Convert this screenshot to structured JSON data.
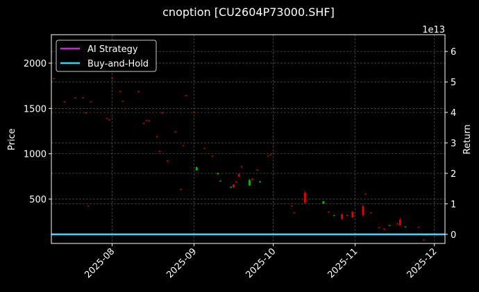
{
  "chart_data": {
    "type": "candlestick",
    "title": "cnoption [CU2604P73000.SHF]",
    "y_label": "Price",
    "y2_label": "Return",
    "y2_offset": "1e13",
    "x": [
      "2025-07-10",
      "2025-07-14",
      "2025-07-18",
      "2025-07-21",
      "2025-07-22",
      "2025-07-23",
      "2025-07-24",
      "2025-07-30",
      "2025-07-31",
      "2025-08-01",
      "2025-08-04",
      "2025-08-05",
      "2025-08-11",
      "2025-08-13",
      "2025-08-14",
      "2025-08-15",
      "2025-08-18",
      "2025-08-19",
      "2025-08-20",
      "2025-08-22",
      "2025-08-25",
      "2025-08-27",
      "2025-08-28",
      "2025-08-29",
      "2025-09-01",
      "2025-09-02",
      "2025-09-05",
      "2025-09-08",
      "2025-09-10",
      "2025-09-11",
      "2025-09-15",
      "2025-09-16",
      "2025-09-17",
      "2025-09-18",
      "2025-09-19",
      "2025-09-22",
      "2025-09-23",
      "2025-09-25",
      "2025-09-26",
      "2025-09-29",
      "2025-09-30",
      "2025-10-08",
      "2025-10-09",
      "2025-10-13",
      "2025-10-20",
      "2025-10-22",
      "2025-10-24",
      "2025-10-27",
      "2025-10-29",
      "2025-10-31",
      "2025-11-04",
      "2025-11-05",
      "2025-11-07",
      "2025-11-10",
      "2025-11-12",
      "2025-11-14",
      "2025-11-17",
      "2025-11-18",
      "2025-11-20",
      "2025-11-25",
      "2025-11-27"
    ],
    "open": [
      1832,
      1575,
      1620,
      1620,
      1452,
      425,
      1575,
      1392,
      1375,
      1835,
      1690,
      1582,
      1690,
      1338,
      1368,
      1368,
      1192,
      1030,
      1452,
      924,
      1245,
      610,
      1092,
      1644,
      1460,
      820,
      1062,
      978,
      775,
      695,
      625,
      660,
      695,
      775,
      862,
      650,
      722,
      822,
      685,
      978,
      992,
      425,
      350,
      570,
      450,
      358,
      315,
      330,
      322,
      360,
      420,
      558,
      350,
      189,
      173,
      205,
      228,
      270,
      190,
      189,
      51
    ],
    "high": [
      1840,
      1580,
      1625,
      1625,
      1458,
      430,
      1580,
      1398,
      1380,
      1840,
      1695,
      1588,
      1695,
      1344,
      1374,
      1373,
      1198,
      1036,
      1458,
      930,
      1250,
      616,
      1098,
      1650,
      1466,
      860,
      1068,
      984,
      790,
      705,
      640,
      665,
      700,
      780,
      868,
      720,
      728,
      828,
      700,
      984,
      998,
      432,
      356,
      590,
      480,
      364,
      325,
      340,
      328,
      368,
      440,
      564,
      356,
      195,
      179,
      215,
      234,
      290,
      200,
      195,
      57
    ],
    "low": [
      1825,
      1565,
      1612,
      1612,
      1445,
      418,
      1566,
      1385,
      1368,
      1826,
      1682,
      1575,
      1682,
      1330,
      1360,
      1361,
      1185,
      1022,
      1444,
      916,
      1238,
      602,
      1085,
      1636,
      1452,
      815,
      1055,
      970,
      770,
      690,
      620,
      625,
      685,
      745,
      855,
      645,
      715,
      815,
      680,
      970,
      985,
      418,
      343,
      440,
      445,
      351,
      312,
      275,
      315,
      295,
      305,
      551,
      343,
      182,
      166,
      202,
      221,
      205,
      187,
      182,
      44
    ],
    "close": [
      1830,
      1570,
      1616,
      1615,
      1448,
      422,
      1570,
      1388,
      1372,
      1830,
      1686,
      1578,
      1686,
      1334,
      1365,
      1365,
      1188,
      1027,
      1449,
      920,
      1242,
      606,
      1089,
      1640,
      1456,
      850,
      1058,
      974,
      785,
      702,
      635,
      630,
      690,
      750,
      858,
      710,
      718,
      818,
      695,
      974,
      988,
      422,
      346,
      460,
      475,
      354,
      322,
      280,
      318,
      300,
      320,
      554,
      346,
      185,
      170,
      212,
      224,
      210,
      197,
      185,
      48
    ],
    "up_color": "#00b400",
    "down_color": "#e00000",
    "series": [
      {
        "name": "AI Strategy",
        "color": "#d020d8",
        "axis": "y2",
        "x": [
          "2025-07-09",
          "2025-12-05"
        ],
        "values": [
          0,
          0
        ]
      },
      {
        "name": "Buy-and-Hold",
        "color": "#30d8f0",
        "axis": "y2",
        "x": [
          "2025-07-09",
          "2025-12-05"
        ],
        "values": [
          0,
          0
        ]
      }
    ],
    "xlim": [
      "2025-07-09",
      "2025-12-05"
    ],
    "xticks": [
      {
        "value": "2025-08-01",
        "label": "2025-08"
      },
      {
        "value": "2025-09-01",
        "label": "2025-09"
      },
      {
        "value": "2025-10-01",
        "label": "2025-10"
      },
      {
        "value": "2025-11-01",
        "label": "2025-11"
      },
      {
        "value": "2025-12-01",
        "label": "2025-12"
      }
    ],
    "ylim": [
      10,
      2314
    ],
    "yticks": [
      500,
      1000,
      1500,
      2000
    ],
    "y2lim": [
      -0.3,
      6.55
    ],
    "y2ticks": [
      0,
      1,
      2,
      3,
      4,
      5,
      6
    ],
    "grid": true,
    "legend": "upper left"
  }
}
